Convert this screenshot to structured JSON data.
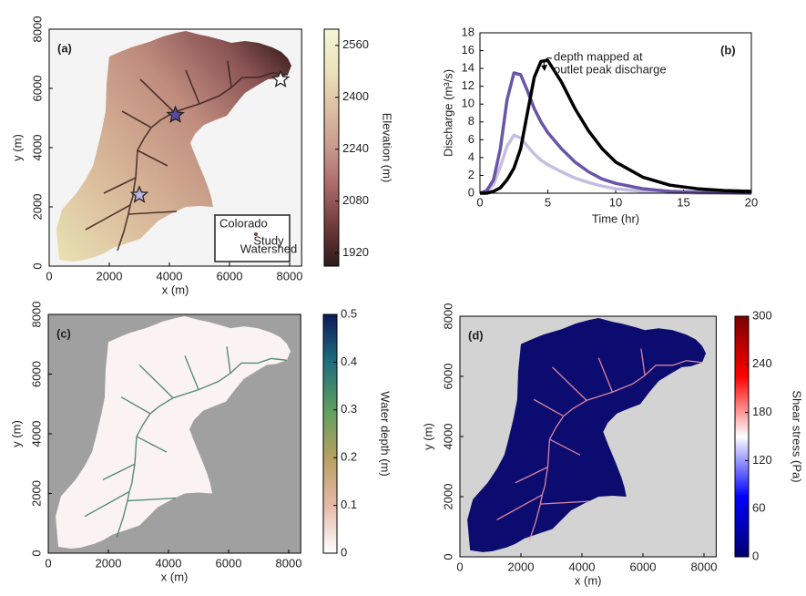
{
  "chart_data": [
    {
      "type": "map",
      "panel_label": "(a)",
      "xlabel": "x (m)",
      "ylabel": "y (m)",
      "xlim": [
        0,
        8400
      ],
      "ylim": [
        0,
        8000
      ],
      "xticks": [
        0,
        2000,
        4000,
        6000,
        8000
      ],
      "yticks": [
        0,
        2000,
        4000,
        6000,
        8000
      ],
      "background": "#f4f4f4",
      "colorbar": {
        "label": "Elevation (m)",
        "lim": [
          1880,
          2610
        ],
        "ticks": [
          1920,
          2080,
          2240,
          2400,
          2560
        ],
        "colors": [
          "#2e1a1a",
          "#6e3a3a",
          "#a86868",
          "#c99a8c",
          "#dcc0a4",
          "#ece4bc",
          "#f6f6d8"
        ]
      },
      "markers": [
        {
          "x": 7700,
          "y": 6300,
          "color": "#ffffff"
        },
        {
          "x": 4200,
          "y": 5100,
          "color": "#5b4a9e"
        },
        {
          "x": 3000,
          "y": 2400,
          "color": "#b9b4e2"
        }
      ],
      "inset": {
        "title": "Colorado",
        "label": [
          "Study",
          "Watershed"
        ]
      }
    },
    {
      "type": "line",
      "panel_label": "(b)",
      "xlabel": "Time (hr)",
      "ylabel": "Discharge (m³/s)",
      "x": [
        0,
        0.5,
        1,
        1.5,
        2,
        2.5,
        3,
        3.5,
        4,
        4.5,
        5,
        6,
        7,
        8,
        9,
        10,
        12,
        14,
        16,
        18,
        20
      ],
      "xlim": [
        0,
        20
      ],
      "ylim": [
        0,
        18
      ],
      "xticks": [
        0,
        5,
        10,
        15,
        20
      ],
      "yticks": [
        0,
        2,
        4,
        6,
        8,
        10,
        12,
        14,
        16,
        18
      ],
      "series": [
        {
          "color": "#000000",
          "values": [
            0,
            0,
            0.2,
            0.6,
            1.5,
            2.8,
            5,
            9,
            13,
            14.8,
            14.9,
            12.5,
            9.5,
            7,
            5,
            3.5,
            1.8,
            0.9,
            0.5,
            0.3,
            0.2
          ]
        },
        {
          "color": "#6a55a6",
          "values": [
            0,
            0.3,
            1.5,
            5,
            10.5,
            13.5,
            13.3,
            11.5,
            9.5,
            8,
            6.8,
            5,
            3.5,
            2.4,
            1.6,
            1.1,
            0.5,
            0.2,
            0.1,
            0.05,
            0
          ]
        },
        {
          "color": "#c3bfe2",
          "values": [
            0,
            0.2,
            1,
            3,
            5.3,
            6.5,
            6.2,
            5.3,
            4.4,
            3.7,
            3.2,
            2.4,
            1.7,
            1.2,
            0.8,
            0.5,
            0.2,
            0.1,
            0,
            0,
            0
          ]
        }
      ],
      "annotation": [
        "depth mapped at",
        "outlet peak discharge"
      ]
    },
    {
      "type": "map",
      "panel_label": "(c)",
      "xlabel": "x (m)",
      "ylabel": "y (m)",
      "xlim": [
        0,
        8400
      ],
      "ylim": [
        0,
        8000
      ],
      "xticks": [
        0,
        2000,
        4000,
        6000,
        8000
      ],
      "yticks": [
        0,
        2000,
        4000,
        6000,
        8000
      ],
      "background": "#a0a0a0",
      "colorbar": {
        "label": "Water depth (m)",
        "lim": [
          0,
          0.5
        ],
        "ticks": [
          0,
          0.1,
          0.2,
          0.3,
          0.4,
          0.5
        ],
        "colors": [
          "#ffffff",
          "#e6b8a8",
          "#b8a060",
          "#5ea060",
          "#1f6e7e",
          "#0b1a5c"
        ]
      }
    },
    {
      "type": "map",
      "panel_label": "(d)",
      "xlabel": "x (m)",
      "ylabel": "y (m)",
      "xlim": [
        0,
        8400
      ],
      "ylim": [
        0,
        8000
      ],
      "xticks": [
        0,
        2000,
        4000,
        6000,
        8000
      ],
      "yticks": [
        0,
        2000,
        4000,
        6000,
        8000
      ],
      "background": "#d3d3d3",
      "colorbar": {
        "label": "Shear stress (Pa)",
        "lim": [
          0,
          300
        ],
        "ticks": [
          0,
          60,
          120,
          180,
          240,
          300
        ],
        "colors": [
          "#00006e",
          "#0000ff",
          "#ffffff",
          "#ff0000",
          "#7a0000"
        ]
      }
    }
  ]
}
